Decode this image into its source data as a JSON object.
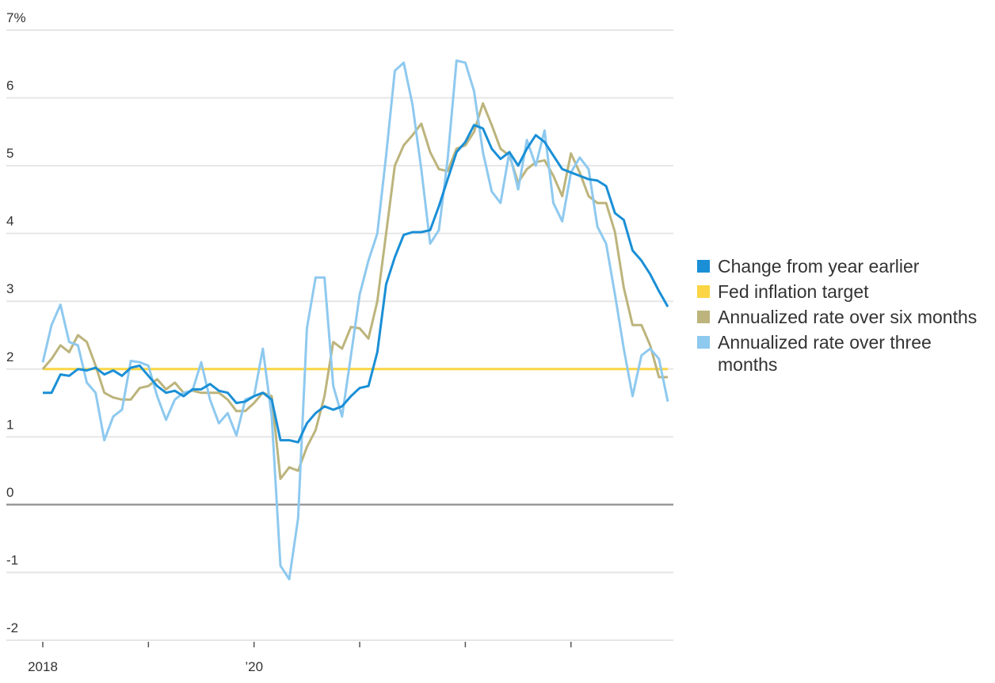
{
  "chart_data": {
    "type": "line",
    "x": [
      2018,
      2018.083,
      2018.167,
      2018.25,
      2018.333,
      2018.417,
      2018.5,
      2018.583,
      2018.667,
      2018.75,
      2018.833,
      2018.917,
      2019,
      2019.083,
      2019.167,
      2019.25,
      2019.333,
      2019.417,
      2019.5,
      2019.583,
      2019.667,
      2019.75,
      2019.833,
      2019.917,
      2020,
      2020.083,
      2020.167,
      2020.25,
      2020.333,
      2020.417,
      2020.5,
      2020.583,
      2020.667,
      2020.75,
      2020.833,
      2020.917,
      2021,
      2021.083,
      2021.167,
      2021.25,
      2021.333,
      2021.417,
      2021.5,
      2021.583,
      2021.667,
      2021.75,
      2021.833,
      2021.917,
      2022,
      2022.083,
      2022.167,
      2022.25,
      2022.333,
      2022.417,
      2022.5,
      2022.583,
      2022.667,
      2022.75,
      2022.833,
      2022.917,
      2023,
      2023.083,
      2023.167,
      2023.25,
      2023.333,
      2023.417,
      2023.5,
      2023.583,
      2023.667,
      2023.75,
      2023.833,
      2023.917
    ],
    "series": [
      {
        "name": "Change from year earlier",
        "color": "#1a8fd6",
        "values": [
          1.65,
          1.65,
          1.92,
          1.9,
          2.0,
          1.98,
          2.02,
          1.92,
          1.98,
          1.9,
          2.02,
          2.05,
          1.9,
          1.75,
          1.65,
          1.68,
          1.6,
          1.7,
          1.7,
          1.78,
          1.68,
          1.65,
          1.5,
          1.52,
          1.6,
          1.65,
          1.55,
          0.95,
          0.95,
          0.92,
          1.2,
          1.35,
          1.45,
          1.4,
          1.45,
          1.6,
          1.72,
          1.75,
          2.25,
          3.25,
          3.65,
          3.98,
          4.02,
          4.02,
          4.05,
          4.4,
          4.8,
          5.2,
          5.35,
          5.6,
          5.55,
          5.25,
          5.1,
          5.2,
          5.0,
          5.25,
          5.45,
          5.35,
          5.15,
          4.95,
          4.9,
          4.85,
          4.8,
          4.78,
          4.7,
          4.3,
          4.2,
          3.75,
          3.6,
          3.4,
          3.15,
          2.92
        ]
      },
      {
        "name": "Fed inflation target",
        "color": "#fcd545",
        "values": [
          2,
          2,
          2,
          2,
          2,
          2,
          2,
          2,
          2,
          2,
          2,
          2,
          2,
          2,
          2,
          2,
          2,
          2,
          2,
          2,
          2,
          2,
          2,
          2,
          2,
          2,
          2,
          2,
          2,
          2,
          2,
          2,
          2,
          2,
          2,
          2,
          2,
          2,
          2,
          2,
          2,
          2,
          2,
          2,
          2,
          2,
          2,
          2,
          2,
          2,
          2,
          2,
          2,
          2,
          2,
          2,
          2,
          2,
          2,
          2,
          2,
          2,
          2,
          2,
          2,
          2,
          2,
          2,
          2,
          2,
          2,
          2
        ]
      },
      {
        "name": "Annualized rate over six months",
        "color": "#bcb47c",
        "values": [
          2.0,
          2.15,
          2.35,
          2.25,
          2.5,
          2.4,
          2.05,
          1.65,
          1.58,
          1.55,
          1.55,
          1.72,
          1.75,
          1.85,
          1.7,
          1.8,
          1.65,
          1.68,
          1.65,
          1.65,
          1.65,
          1.55,
          1.38,
          1.38,
          1.5,
          1.65,
          1.6,
          0.38,
          0.55,
          0.5,
          0.85,
          1.1,
          1.6,
          2.4,
          2.3,
          2.62,
          2.6,
          2.45,
          3.0,
          4.0,
          5.0,
          5.3,
          5.45,
          5.62,
          5.2,
          4.95,
          4.92,
          5.25,
          5.3,
          5.5,
          5.92,
          5.6,
          5.25,
          5.15,
          4.75,
          4.95,
          5.05,
          5.08,
          4.85,
          4.55,
          5.18,
          4.9,
          4.55,
          4.45,
          4.45,
          4.02,
          3.2,
          2.65,
          2.65,
          2.35,
          1.88,
          1.88
        ]
      },
      {
        "name": "Annualized rate over three months",
        "color": "#8ec9ef",
        "values": [
          2.1,
          2.65,
          2.95,
          2.4,
          2.35,
          1.8,
          1.65,
          0.95,
          1.3,
          1.4,
          2.12,
          2.1,
          2.05,
          1.6,
          1.25,
          1.55,
          1.65,
          1.68,
          2.1,
          1.55,
          1.2,
          1.35,
          1.02,
          1.55,
          1.6,
          2.3,
          1.3,
          -0.9,
          -1.1,
          -0.2,
          2.6,
          3.35,
          3.35,
          1.75,
          1.3,
          2.2,
          3.1,
          3.6,
          4.0,
          5.15,
          6.4,
          6.52,
          5.9,
          4.95,
          3.85,
          4.05,
          5.1,
          6.55,
          6.52,
          6.1,
          5.2,
          4.62,
          4.45,
          5.2,
          4.65,
          5.38,
          5.0,
          5.52,
          4.45,
          4.18,
          4.9,
          5.12,
          4.95,
          4.1,
          3.85,
          3.1,
          2.3,
          1.6,
          2.2,
          2.3,
          2.15,
          1.52
        ]
      }
    ],
    "xlim": [
      2018,
      2023.917
    ],
    "xticks": [
      2018,
      {
        "value": 2019,
        "label": null
      },
      {
        "value": 2020,
        "label": "’20"
      },
      {
        "value": 2021,
        "label": null
      },
      {
        "value": 2022,
        "label": null
      },
      {
        "value": 2023,
        "label": null
      }
    ],
    "ylim": [
      -2,
      7
    ],
    "yticks": [
      -2,
      -1,
      0,
      1,
      2,
      3,
      4,
      5,
      6,
      {
        "value": 7,
        "label": "7%"
      }
    ],
    "grid": true,
    "legend": "right"
  }
}
